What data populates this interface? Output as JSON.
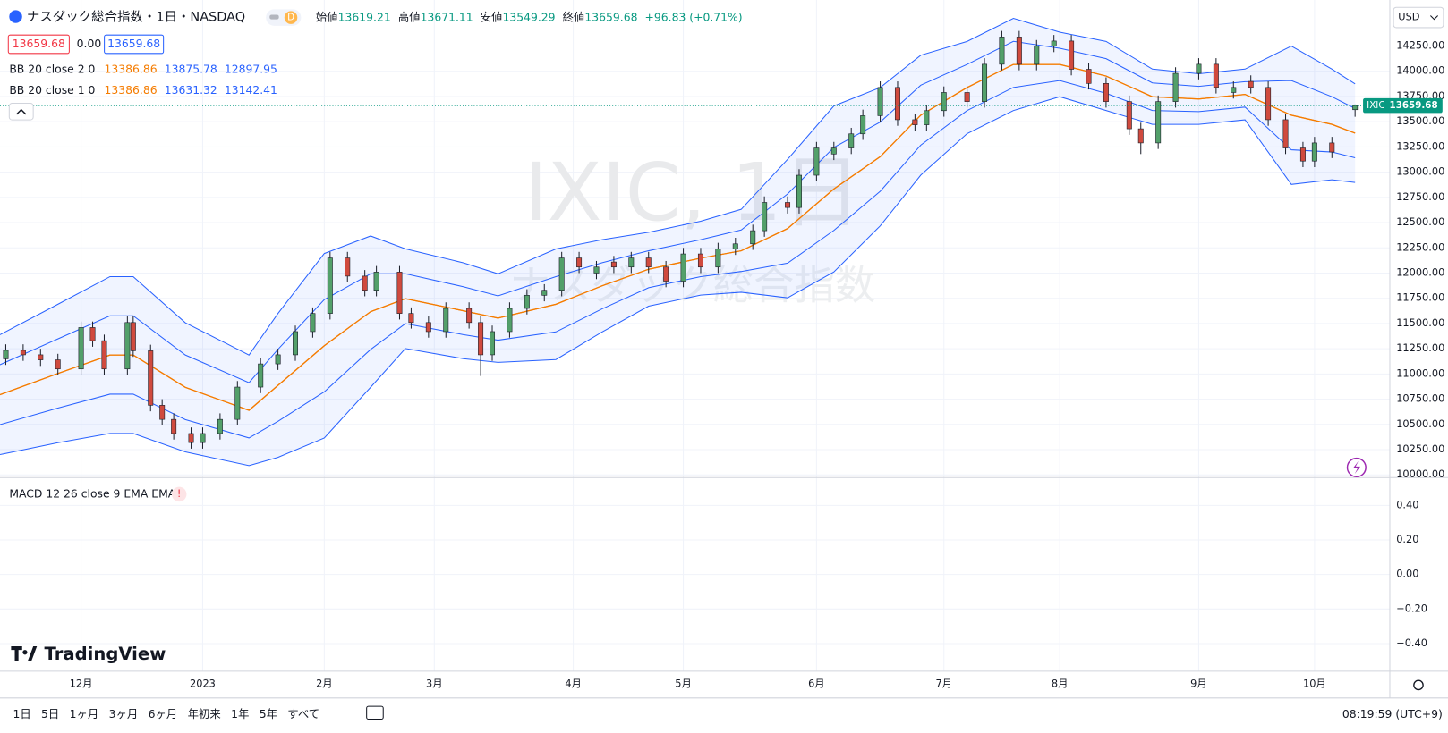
{
  "chart_data": {
    "type": "candlestick",
    "title": "ナスダック総合指数・1日・NASDAQ",
    "interval_badge": "D",
    "symbol": "IXIC",
    "currency": "USD",
    "ohlc_labels": [
      "始値",
      "高値",
      "安値",
      "終値"
    ],
    "change": "+96.83 (+0.71%)",
    "price_box_middle": "0.00",
    "watermark": [
      "IXIC, 1日",
      "ナスダック総合指数"
    ],
    "up_color": "#53a06a",
    "down_color": "#d04a3e",
    "grid": true,
    "x": [
      1,
      4,
      7,
      10,
      14,
      16,
      18,
      22,
      23,
      26,
      28,
      30,
      33,
      35,
      38,
      41,
      45,
      48,
      51,
      54,
      57,
      60,
      63,
      65,
      69,
      71,
      74,
      77,
      81,
      83,
      85,
      88,
      91,
      94,
      97,
      100,
      103,
      106,
      109,
      112,
      115,
      118,
      121,
      124,
      127,
      130,
      132,
      136,
      138,
      141,
      144,
      147,
      149,
      152,
      155,
      158,
      160,
      163,
      167,
      170,
      173,
      176,
      179,
      182,
      185,
      188,
      191,
      195,
      197,
      200,
      203,
      207,
      210,
      213,
      216,
      219,
      222,
      225,
      227,
      230,
      234
    ],
    "open": [
      11150,
      11234,
      11190,
      11140,
      11050,
      11460,
      11330,
      11050,
      11510,
      11230,
      10690,
      10550,
      10410,
      10320,
      10410,
      10550,
      10870,
      11100,
      11190,
      11420,
      11600,
      12150,
      11970,
      11830,
      12010,
      11600,
      11510,
      11420,
      11650,
      11510,
      11190,
      11420,
      11650,
      11780,
      11830,
      12150,
      12000,
      12110,
      12060,
      12150,
      12060,
      11920,
      12190,
      12060,
      12240,
      12290,
      12420,
      12700,
      12650,
      12970,
      13180,
      13240,
      13380,
      13560,
      13840,
      13520,
      13470,
      13610,
      13790,
      13700,
      14070,
      14340,
      14070,
      14250,
      14300,
      14020,
      13880,
      13700,
      13430,
      13290,
      13700,
      13980,
      14070,
      13790,
      13900,
      13840,
      13520,
      13240,
      13110,
      13290,
      13619.21
    ],
    "high": [
      11294,
      11294,
      11250,
      11200,
      11520,
      11520,
      11390,
      11570,
      11570,
      11290,
      10750,
      10610,
      10470,
      10470,
      10610,
      10930,
      11160,
      11250,
      11480,
      11660,
      12210,
      12210,
      12030,
      12070,
      12070,
      11660,
      11570,
      11710,
      11710,
      11570,
      11480,
      11710,
      11840,
      11890,
      12210,
      12210,
      12120,
      12170,
      12210,
      12210,
      12120,
      12250,
      12250,
      12300,
      12350,
      12480,
      12760,
      12760,
      13030,
      13300,
      13300,
      13440,
      13620,
      13900,
      13900,
      13580,
      13670,
      13850,
      13850,
      14130,
      14400,
      14400,
      14310,
      14360,
      14360,
      14080,
      13940,
      13760,
      13490,
      13760,
      14040,
      14130,
      14130,
      13900,
      13960,
      13900,
      13580,
      13300,
      13350,
      13350,
      13671.11
    ],
    "low": [
      11090,
      11130,
      11080,
      10990,
      10990,
      11270,
      10990,
      10990,
      11170,
      10630,
      10490,
      10350,
      10260,
      10260,
      10350,
      10490,
      10810,
      11040,
      11130,
      11360,
      11540,
      11910,
      11770,
      11770,
      11540,
      11450,
      11360,
      11360,
      11450,
      10980,
      11130,
      11360,
      11590,
      11720,
      11770,
      12000,
      11940,
      12000,
      12000,
      12000,
      11860,
      11860,
      12000,
      12000,
      12180,
      12230,
      12360,
      12590,
      12590,
      12910,
      13120,
      13180,
      13320,
      13500,
      13460,
      13410,
      13410,
      13550,
      13640,
      13640,
      14010,
      14010,
      14010,
      14190,
      13960,
      13820,
      13640,
      13370,
      13180,
      13230,
      13640,
      13920,
      13780,
      13730,
      13780,
      13460,
      13180,
      13050,
      13050,
      13140,
      13549.29
    ],
    "close": [
      11234,
      11190,
      11140,
      11050,
      11460,
      11330,
      11050,
      11510,
      11230,
      10690,
      10550,
      10410,
      10320,
      10410,
      10550,
      10870,
      11100,
      11190,
      11420,
      11600,
      12150,
      11970,
      11830,
      12010,
      11600,
      11510,
      11420,
      11650,
      11510,
      11190,
      11420,
      11650,
      11780,
      11830,
      12150,
      12060,
      12060,
      12060,
      12150,
      12060,
      11920,
      12190,
      12060,
      12240,
      12290,
      12420,
      12700,
      12650,
      12970,
      13240,
      13240,
      13380,
      13560,
      13840,
      13520,
      13470,
      13610,
      13790,
      13700,
      14070,
      14340,
      14070,
      14250,
      14300,
      14020,
      13880,
      13700,
      13430,
      13290,
      13700,
      13980,
      14070,
      13840,
      13840,
      13840,
      13520,
      13240,
      13110,
      13290,
      13200,
      13659.68
    ],
    "xlim": [
      0,
      240
    ],
    "xticks": [
      {
        "value": 14,
        "label": "12月"
      },
      {
        "value": 35,
        "label": "2023"
      },
      {
        "value": 56,
        "label": "2月"
      },
      {
        "value": 75,
        "label": "3月"
      },
      {
        "value": 99,
        "label": "4月"
      },
      {
        "value": 118,
        "label": "5月"
      },
      {
        "value": 141,
        "label": "6月"
      },
      {
        "value": 163,
        "label": "7月"
      },
      {
        "value": 183,
        "label": "8月"
      },
      {
        "value": 207,
        "label": "9月"
      },
      {
        "value": 227,
        "label": "10月"
      }
    ],
    "ylim": [
      9973,
      14661
    ],
    "yticks": [
      {
        "value": 10000,
        "label": "10000.00"
      },
      {
        "value": 10250,
        "label": "10250.00"
      },
      {
        "value": 10500,
        "label": "10500.00"
      },
      {
        "value": 10750,
        "label": "10750.00"
      },
      {
        "value": 11000,
        "label": "11000.00"
      },
      {
        "value": 11250,
        "label": "11250.00"
      },
      {
        "value": 11500,
        "label": "11500.00"
      },
      {
        "value": 11750,
        "label": "11750.00"
      },
      {
        "value": 12000,
        "label": "12000.00"
      },
      {
        "value": 12250,
        "label": "12250.00"
      },
      {
        "value": 12500,
        "label": "12500.00"
      },
      {
        "value": 12750,
        "label": "12750.00"
      },
      {
        "value": 13000,
        "label": "13000.00"
      },
      {
        "value": 13250,
        "label": "13250.00"
      },
      {
        "value": 13500,
        "label": "13500.00"
      },
      {
        "value": 13750,
        "label": "13750.00"
      },
      {
        "value": 14000,
        "label": "14000.00"
      },
      {
        "value": 14250,
        "label": "14250.00"
      }
    ],
    "band_x": [
      0,
      10,
      19,
      23,
      32,
      43,
      48,
      56,
      64,
      70,
      80,
      86,
      96,
      104,
      112,
      121,
      128,
      136,
      144,
      152,
      159,
      167,
      175,
      183,
      191,
      199,
      207,
      215,
      223,
      230,
      234
    ],
    "bollinger": [
      {
        "label": "BB 20 close 2 0",
        "basis_color": "#f57c00",
        "band_color": "#2962ff",
        "basis": [
          10795,
          11005,
          11188,
          11188,
          10868,
          10640,
          10887,
          11280,
          11618,
          11746,
          11627,
          11554,
          11691,
          11874,
          12038,
          12148,
          12221,
          12441,
          12834,
          13154,
          13565,
          13839,
          14068,
          14068,
          13953,
          13748,
          13725,
          13771,
          13565,
          13474,
          13386.86
        ],
        "upper": [
          11389,
          11691,
          11965,
          11965,
          11508,
          11188,
          11600,
          12194,
          12368,
          12240,
          12102,
          11993,
          12239,
          12331,
          12404,
          12514,
          12632,
          13127,
          13657,
          13839,
          14159,
          14296,
          14525,
          14388,
          14296,
          14022,
          13976,
          14022,
          14250,
          14022,
          13875.78
        ],
        "lower": [
          10201,
          10319,
          10411,
          10411,
          10228,
          10092,
          10174,
          10366,
          10868,
          11252,
          11152,
          11115,
          11143,
          11417,
          11672,
          11782,
          11810,
          11755,
          12011,
          12468,
          12971,
          13382,
          13611,
          13748,
          13611,
          13474,
          13474,
          13519,
          12879,
          12925,
          12897.95
        ]
      },
      {
        "label": "BB 20 close 1 0",
        "basis_color": "#f57c00",
        "band_color": "#2962ff",
        "basis": [
          10795,
          11005,
          11188,
          11188,
          10868,
          10640,
          10887,
          11280,
          11618,
          11746,
          11627,
          11554,
          11691,
          11874,
          12038,
          12148,
          12221,
          12441,
          12834,
          13154,
          13565,
          13839,
          14068,
          14068,
          13953,
          13748,
          13725,
          13771,
          13565,
          13474,
          13386.86
        ],
        "upper": [
          11092,
          11348,
          11577,
          11577,
          11188,
          10914,
          11244,
          11737,
          11993,
          11993,
          11865,
          11774,
          11965,
          12103,
          12221,
          12331,
          12427,
          12784,
          13246,
          13497,
          13862,
          14068,
          14297,
          14228,
          14125,
          13885,
          13851,
          13897,
          13908,
          13748,
          13631.32
        ],
        "lower": [
          10498,
          10662,
          10800,
          10800,
          10548,
          10366,
          10531,
          10823,
          11243,
          11499,
          11390,
          11335,
          11417,
          11646,
          11855,
          11965,
          12016,
          12098,
          12423,
          12811,
          13268,
          13611,
          13840,
          13908,
          13782,
          13611,
          13600,
          13645,
          13222,
          13200,
          13142.41
        ]
      }
    ],
    "macd": {
      "label": "MACD 12 26 close 9 EMA EMA",
      "ylim": [
        -0.56,
        0.55
      ],
      "yticks": [
        {
          "value": 0.4,
          "label": "0.40"
        },
        {
          "value": 0.2,
          "label": "0.20"
        },
        {
          "value": 0,
          "label": "0.00"
        },
        {
          "value": -0.2,
          "label": "−0.20"
        },
        {
          "value": -0.4,
          "label": "−0.40"
        }
      ]
    }
  },
  "logo": "TradingView",
  "toolbar": {
    "ranges": [
      "1日",
      "5日",
      "1ヶ月",
      "3ヶ月",
      "6ヶ月",
      "年初来",
      "1年",
      "5年",
      "すべて"
    ],
    "clock": "08:19:59 (UTC+9)"
  }
}
